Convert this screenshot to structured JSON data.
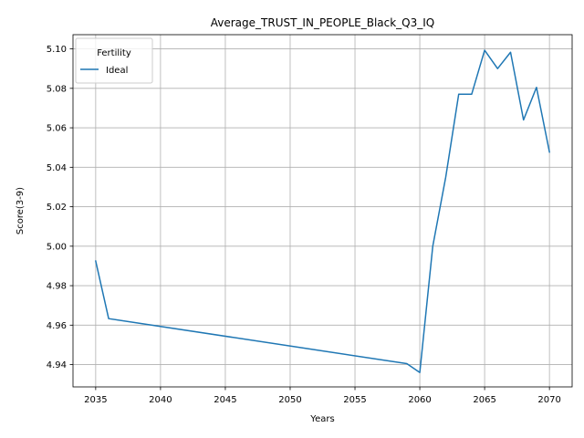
{
  "chart_data": {
    "type": "line",
    "title": "Average_TRUST_IN_PEOPLE_Black_Q3_IQ",
    "xlabel": "Years",
    "ylabel": "Score(3-9)",
    "xlim": [
      2033.25,
      2071.75
    ],
    "ylim": [
      4.9287,
      5.1072
    ],
    "xticks": [
      2035,
      2040,
      2045,
      2050,
      2055,
      2060,
      2065,
      2070
    ],
    "xtick_labels": [
      "2035",
      "2040",
      "2045",
      "2050",
      "2055",
      "2060",
      "2065",
      "2070"
    ],
    "yticks": [
      4.94,
      4.96,
      4.98,
      5.0,
      5.02,
      5.04,
      5.06,
      5.08,
      5.1
    ],
    "ytick_labels": [
      "4.94",
      "4.96",
      "4.98",
      "5.00",
      "5.02",
      "5.04",
      "5.06",
      "5.08",
      "5.10"
    ],
    "grid": true,
    "legend": {
      "title": "Fertility",
      "placement": "top-left"
    },
    "series": [
      {
        "name": "Ideal",
        "color": "#1f77b4",
        "x": [
          2035,
          2036,
          2059,
          2060,
          2061,
          2062,
          2063,
          2064,
          2065,
          2066,
          2067,
          2068,
          2069,
          2070
        ],
        "y": [
          4.9925,
          4.9633,
          4.9405,
          4.936,
          5.0,
          5.035,
          5.077,
          5.077,
          5.0993,
          5.09,
          5.0983,
          5.064,
          5.0805,
          5.0477
        ]
      }
    ]
  }
}
